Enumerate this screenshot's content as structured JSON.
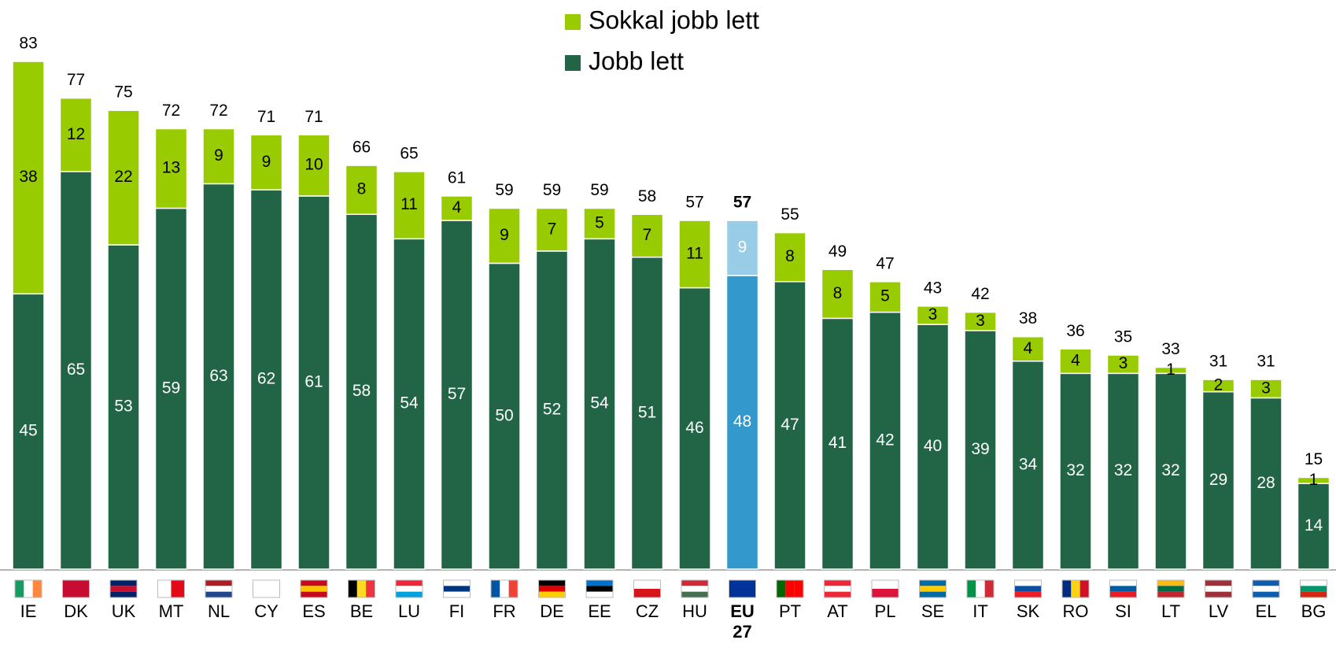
{
  "chart_data": {
    "type": "stacked_bar",
    "categories": [
      "IE",
      "DK",
      "UK",
      "MT",
      "NL",
      "CY",
      "ES",
      "BE",
      "LU",
      "FI",
      "FR",
      "DE",
      "EE",
      "CZ",
      "HU",
      "EU 27",
      "PT",
      "AT",
      "PL",
      "SE",
      "IT",
      "SK",
      "RO",
      "SI",
      "LT",
      "LV",
      "EL",
      "BG"
    ],
    "series": [
      {
        "name": "Jobb lett",
        "color": "#216546",
        "values": [
          45,
          65,
          53,
          59,
          63,
          62,
          61,
          58,
          54,
          57,
          50,
          52,
          54,
          51,
          46,
          48,
          47,
          41,
          42,
          40,
          39,
          34,
          32,
          32,
          32,
          29,
          28,
          14
        ]
      },
      {
        "name": "Sokkal jobb lett",
        "color": "#99cc00",
        "values": [
          38,
          12,
          22,
          13,
          9,
          9,
          10,
          8,
          11,
          4,
          9,
          7,
          5,
          7,
          11,
          9,
          8,
          8,
          5,
          3,
          3,
          4,
          4,
          3,
          1,
          2,
          3,
          1
        ]
      }
    ],
    "totals": [
      83,
      77,
      75,
      72,
      72,
      71,
      71,
      66,
      65,
      61,
      59,
      59,
      59,
      58,
      57,
      57,
      55,
      49,
      47,
      43,
      42,
      38,
      36,
      35,
      33,
      31,
      31,
      15
    ],
    "highlight": {
      "category": "EU 27",
      "colors": [
        "#3399cc",
        "#99cce6"
      ]
    },
    "ylim": [
      0,
      83
    ],
    "legend": "top"
  }
}
